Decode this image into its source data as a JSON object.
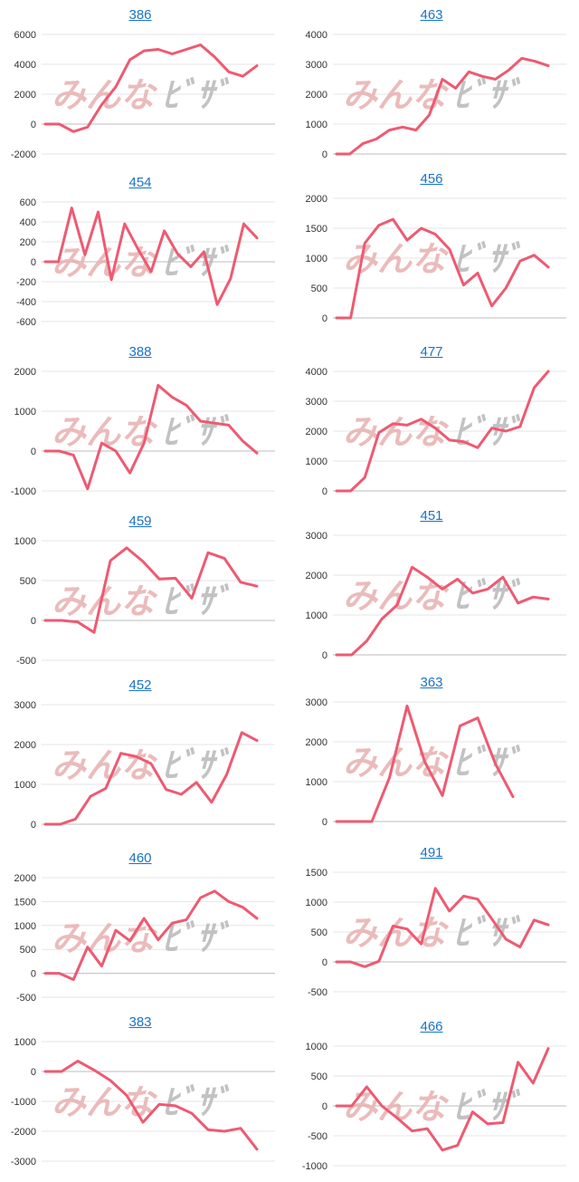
{
  "watermark": {
    "part1": "みんな",
    "part2": "ﾋﾞｻﾞ"
  },
  "colors": {
    "line": "#ee5a72",
    "title": "#1a73c8"
  },
  "chart_data": [
    {
      "type": "line",
      "title": "386",
      "ylim": [
        -2000,
        6000
      ],
      "yticks": [
        -2000,
        0,
        2000,
        4000,
        6000
      ],
      "values": [
        0,
        0,
        -500,
        -200,
        1300,
        2500,
        4300,
        4900,
        5000,
        4700,
        5000,
        5300,
        4500,
        3500,
        3200,
        3900
      ]
    },
    {
      "type": "line",
      "title": "463",
      "ylim": [
        0,
        4000
      ],
      "yticks": [
        0,
        1000,
        2000,
        3000,
        4000
      ],
      "values": [
        0,
        0,
        350,
        500,
        800,
        900,
        800,
        1300,
        2500,
        2200,
        2750,
        2600,
        2500,
        2800,
        3200,
        3100,
        2950
      ]
    },
    {
      "type": "line",
      "title": "454",
      "ylim": [
        -600,
        600
      ],
      "yticks": [
        -600,
        -400,
        -200,
        0,
        200,
        400,
        600
      ],
      "values": [
        0,
        0,
        540,
        70,
        500,
        -180,
        380,
        130,
        -100,
        310,
        80,
        -50,
        100,
        -430,
        -170,
        380,
        240
      ]
    },
    {
      "type": "line",
      "title": "456",
      "ylim": [
        0,
        2000
      ],
      "yticks": [
        0,
        500,
        1000,
        1500,
        2000
      ],
      "values": [
        0,
        0,
        1250,
        1550,
        1650,
        1300,
        1500,
        1400,
        1150,
        550,
        750,
        200,
        500,
        950,
        1050,
        850
      ]
    },
    {
      "type": "line",
      "title": "388",
      "ylim": [
        -1000,
        2000
      ],
      "yticks": [
        -1000,
        0,
        1000,
        2000
      ],
      "values": [
        0,
        0,
        -100,
        -950,
        200,
        0,
        -550,
        200,
        1650,
        1350,
        1150,
        750,
        700,
        650,
        250,
        -50
      ]
    },
    {
      "type": "line",
      "title": "477",
      "ylim": [
        0,
        4000
      ],
      "yticks": [
        0,
        1000,
        2000,
        3000,
        4000
      ],
      "values": [
        0,
        0,
        450,
        1950,
        2250,
        2200,
        2400,
        2100,
        1700,
        1650,
        1450,
        2100,
        2000,
        2150,
        3450,
        4000
      ]
    },
    {
      "type": "line",
      "title": "459",
      "ylim": [
        -500,
        1000
      ],
      "yticks": [
        -500,
        0,
        500,
        1000
      ],
      "values": [
        0,
        0,
        -20,
        -150,
        750,
        910,
        740,
        520,
        530,
        280,
        850,
        780,
        480,
        430
      ]
    },
    {
      "type": "line",
      "title": "451",
      "ylim": [
        0,
        3000
      ],
      "yticks": [
        0,
        1000,
        2000,
        3000
      ],
      "values": [
        0,
        0,
        350,
        900,
        1250,
        2200,
        1950,
        1650,
        1900,
        1550,
        1650,
        1950,
        1300,
        1450,
        1400
      ]
    },
    {
      "type": "line",
      "title": "452",
      "ylim": [
        0,
        3000
      ],
      "yticks": [
        0,
        1000,
        2000,
        3000
      ],
      "values": [
        0,
        0,
        130,
        700,
        900,
        1780,
        1700,
        1520,
        870,
        750,
        1050,
        550,
        1250,
        2300,
        2100
      ]
    },
    {
      "type": "line",
      "title": "363",
      "ylim": [
        0,
        3000
      ],
      "yticks": [
        0,
        1000,
        2000,
        3000
      ],
      "values": [
        0,
        0,
        0,
        1100,
        2900,
        1500,
        650,
        2400,
        2600,
        1450,
        620
      ]
    },
    {
      "type": "line",
      "title": "460",
      "ylim": [
        -500,
        2000
      ],
      "yticks": [
        -500,
        0,
        500,
        1000,
        1500,
        2000
      ],
      "values": [
        0,
        0,
        -130,
        550,
        150,
        900,
        680,
        1150,
        700,
        1050,
        1120,
        1580,
        1720,
        1500,
        1380,
        1150
      ]
    },
    {
      "type": "line",
      "title": "491",
      "ylim": [
        -500,
        1500
      ],
      "yticks": [
        -500,
        0,
        500,
        1000,
        1500
      ],
      "values": [
        0,
        0,
        -80,
        10,
        600,
        550,
        300,
        1230,
        850,
        1100,
        1050,
        720,
        380,
        250,
        700,
        620
      ]
    },
    {
      "type": "line",
      "title": "383",
      "ylim": [
        -3000,
        1000
      ],
      "yticks": [
        -3000,
        -2000,
        -1000,
        0,
        1000
      ],
      "values": [
        0,
        0,
        350,
        50,
        -300,
        -800,
        -1700,
        -1100,
        -1150,
        -1400,
        -1950,
        -2000,
        -1900,
        -2600
      ]
    },
    {
      "type": "line",
      "title": "466",
      "ylim": [
        -1000,
        1000
      ],
      "yticks": [
        -1000,
        -500,
        0,
        500,
        1000
      ],
      "values": [
        0,
        0,
        320,
        0,
        -200,
        -420,
        -380,
        -740,
        -660,
        -100,
        -300,
        -280,
        730,
        380,
        960
      ]
    }
  ]
}
